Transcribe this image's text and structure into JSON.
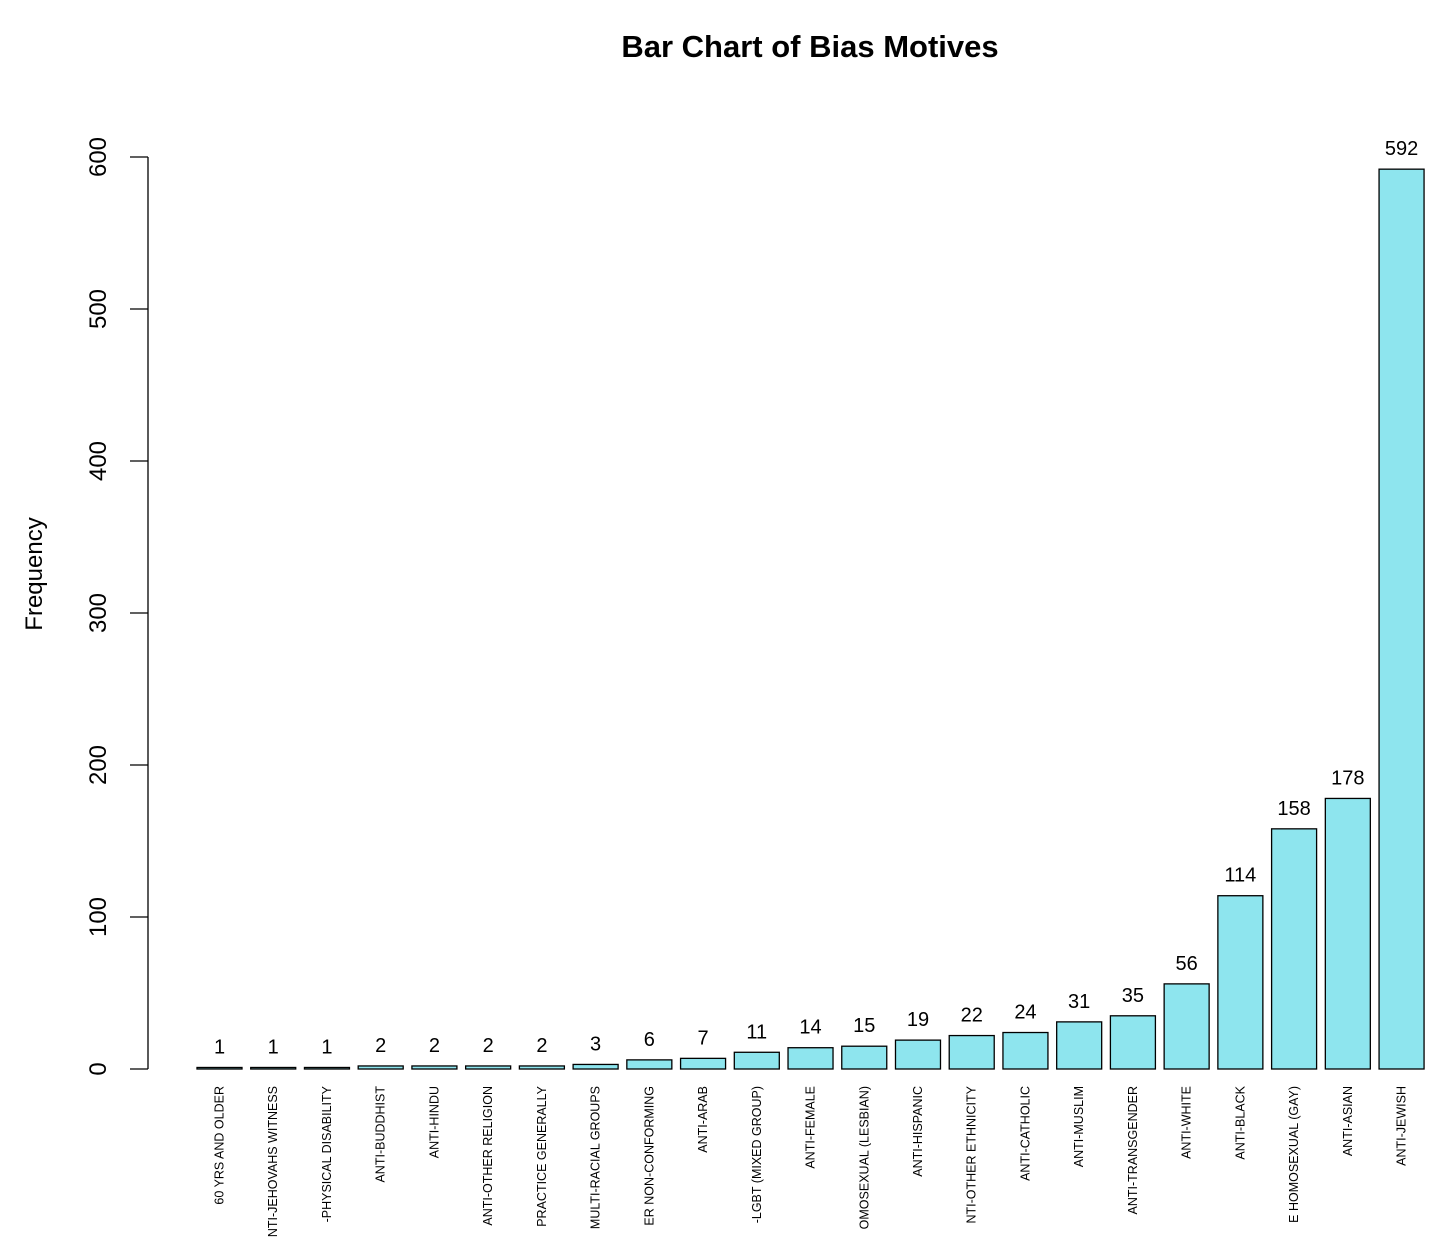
{
  "chart_data": {
    "type": "bar",
    "title": "Bar Chart of Bias Motives",
    "xlabel": "",
    "ylabel": "Frequency",
    "ylim": [
      0,
      600
    ],
    "yticks": [
      0,
      100,
      200,
      300,
      400,
      500,
      600
    ],
    "grid": false,
    "legend": "none",
    "bar_color": "#8EE5EE",
    "border_color": "#000000",
    "categories": [
      "60 YRS AND OLDER",
      "NTI-JEHOVAHS WITNESS",
      "-PHYSICAL DISABILITY",
      "ANTI-BUDDHIST",
      "ANTI-HINDU",
      "ANTI-OTHER RELIGION",
      "PRACTICE GENERALLY",
      "MULTI-RACIAL GROUPS",
      "ER NON-CONFORMING",
      "ANTI-ARAB",
      "-LGBT (MIXED GROUP)",
      "ANTI-FEMALE",
      "OMOSEXUAL (LESBIAN)",
      "ANTI-HISPANIC",
      "NTI-OTHER ETHNICITY",
      "ANTI-CATHOLIC",
      "ANTI-MUSLIM",
      "ANTI-TRANSGENDER",
      "ANTI-WHITE",
      "ANTI-BLACK",
      "E HOMOSEXUAL (GAY)",
      "ANTI-ASIAN",
      "ANTI-JEWISH"
    ],
    "values": [
      1,
      1,
      1,
      2,
      2,
      2,
      2,
      3,
      6,
      7,
      11,
      14,
      15,
      19,
      22,
      24,
      31,
      35,
      56,
      114,
      158,
      178,
      592
    ],
    "value_labels": [
      "1",
      "1",
      "1",
      "2",
      "2",
      "2",
      "2",
      "3",
      "6",
      "7",
      "11",
      "14",
      "15",
      "19",
      "22",
      "24",
      "31",
      "35",
      "56",
      "114",
      "158",
      "178",
      "592"
    ]
  }
}
